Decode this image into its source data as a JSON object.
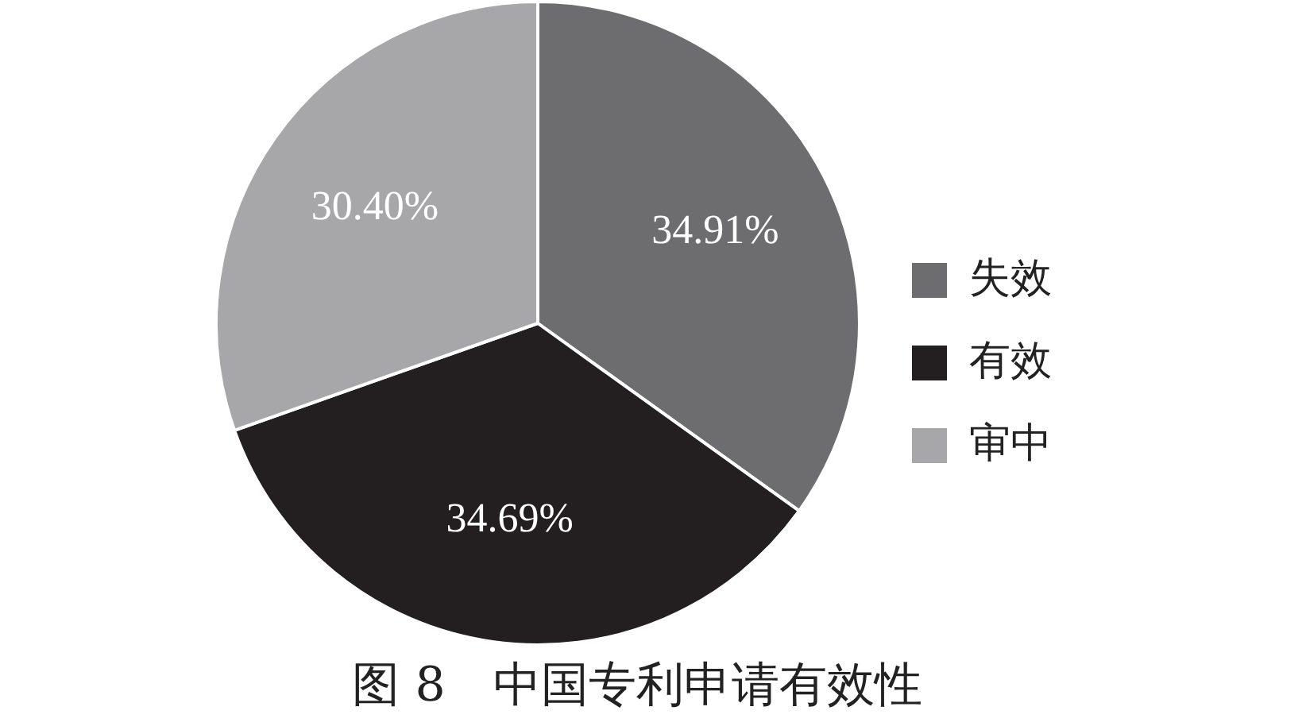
{
  "chart_data": {
    "type": "pie",
    "title": "图 8　中国专利申请有效性",
    "categories": [
      "失效",
      "有效",
      "审中"
    ],
    "values": [
      34.91,
      34.69,
      30.4
    ],
    "value_labels": [
      "34.91%",
      "34.69%",
      "30.40%"
    ],
    "colors": [
      "#6d6d6f",
      "#231f20",
      "#a7a7a9"
    ],
    "legend": "right"
  }
}
